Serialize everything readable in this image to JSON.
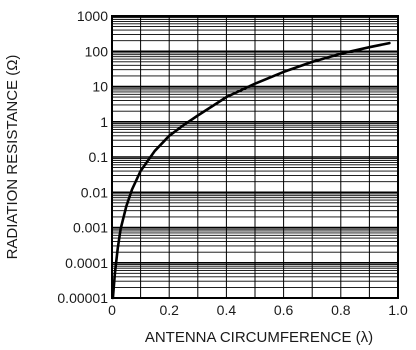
{
  "chart_data": {
    "type": "line",
    "title": "",
    "xlabel": "ANTENNA CIRCUMFERENCE (λ)",
    "ylabel": "RADIATION RESISTANCE (Ω)",
    "xscale": "linear",
    "yscale": "log",
    "xlim": [
      0,
      1.0
    ],
    "ylim": [
      1e-05,
      1000
    ],
    "xticks": [
      0,
      0.2,
      0.4,
      0.6,
      0.8,
      1.0
    ],
    "xtick_labels": [
      "0",
      "0.2",
      "0.4",
      "0.6",
      "0.8",
      "1.0"
    ],
    "yticks": [
      1e-05,
      0.0001,
      0.001,
      0.01,
      0.1,
      1,
      10,
      100,
      1000
    ],
    "ytick_labels": [
      "0.00001",
      "0.0001",
      "0.001",
      "0.01",
      "0.1",
      "1",
      "10",
      "100",
      "1000"
    ],
    "grid": true,
    "series": [
      {
        "color": "#000000",
        "x": [
          0.003,
          0.01,
          0.02,
          0.03,
          0.05,
          0.07,
          0.1,
          0.15,
          0.2,
          0.25,
          0.3,
          0.4,
          0.5,
          0.6,
          0.7,
          0.8,
          0.9,
          0.97
        ],
        "y": [
          1e-05,
          5e-05,
          0.00025,
          0.0009,
          0.004,
          0.012,
          0.04,
          0.15,
          0.4,
          0.8,
          1.5,
          5,
          12,
          26,
          50,
          85,
          130,
          170
        ]
      }
    ]
  }
}
